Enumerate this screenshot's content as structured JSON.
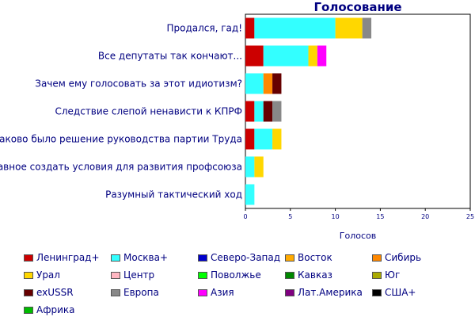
{
  "chart_data": {
    "type": "bar",
    "orientation": "horizontal",
    "stacked": true,
    "title": "Голосование",
    "xlabel": "Голосов",
    "xlim": [
      0,
      25
    ],
    "xticks": [
      "0",
      "5",
      "10",
      "15",
      "20",
      "25"
    ],
    "grid": false,
    "legend_position": "bottom",
    "categories": [
      "Продался, гад!",
      "Все депутаты так кончают...",
      "Зачем ему голосовать за этот идиотизм?",
      "Следствие слепой ненависти к КПРФ",
      "Таково было решение руководства партии Труда",
      "Главное создать условия для развития профсоюза",
      "Разумный тактический ход"
    ],
    "series": [
      {
        "name": "Ленинград+",
        "color": "#cc0000",
        "values": [
          1,
          2,
          0,
          1,
          1,
          0,
          0
        ]
      },
      {
        "name": "Москва+",
        "color": "#33ffff",
        "values": [
          9,
          5,
          2,
          1,
          2,
          1,
          1
        ]
      },
      {
        "name": "Северо-Запад",
        "color": "#0000cc",
        "values": [
          0,
          0,
          0,
          0,
          0,
          0,
          0
        ]
      },
      {
        "name": "Восток",
        "color": "#ffaa00",
        "values": [
          0,
          0,
          0,
          0,
          0,
          0,
          0
        ]
      },
      {
        "name": "Сибирь",
        "color": "#ff8800",
        "values": [
          0,
          0,
          1,
          0,
          0,
          0,
          0
        ]
      },
      {
        "name": "Урал",
        "color": "#ffd700",
        "values": [
          3,
          1,
          0,
          0,
          1,
          1,
          0
        ]
      },
      {
        "name": "Центр",
        "color": "#ffb6c1",
        "values": [
          0,
          0,
          0,
          0,
          0,
          0,
          0
        ]
      },
      {
        "name": "Поволжье",
        "color": "#00ff00",
        "values": [
          0,
          0,
          0,
          0,
          0,
          0,
          0
        ]
      },
      {
        "name": "Кавказ",
        "color": "#008800",
        "values": [
          0,
          0,
          0,
          0,
          0,
          0,
          0
        ]
      },
      {
        "name": "Юг",
        "color": "#aaaa00",
        "values": [
          0,
          0,
          0,
          0,
          0,
          0,
          0
        ]
      },
      {
        "name": "exUSSR",
        "color": "#660000",
        "values": [
          0,
          0,
          1,
          1,
          0,
          0,
          0
        ]
      },
      {
        "name": "Европа",
        "color": "#888888",
        "values": [
          1,
          0,
          0,
          1,
          0,
          0,
          0
        ]
      },
      {
        "name": "Азия",
        "color": "#ff00ff",
        "values": [
          0,
          1,
          0,
          0,
          0,
          0,
          0
        ]
      },
      {
        "name": "Лат.Америка",
        "color": "#800080",
        "values": [
          0,
          0,
          0,
          0,
          0,
          0,
          0
        ]
      },
      {
        "name": "США+",
        "color": "#000000",
        "values": [
          0,
          0,
          0,
          0,
          0,
          0,
          0
        ]
      },
      {
        "name": "Африка",
        "color": "#00bb00",
        "values": [
          0,
          0,
          0,
          0,
          0,
          0,
          0
        ]
      }
    ]
  }
}
